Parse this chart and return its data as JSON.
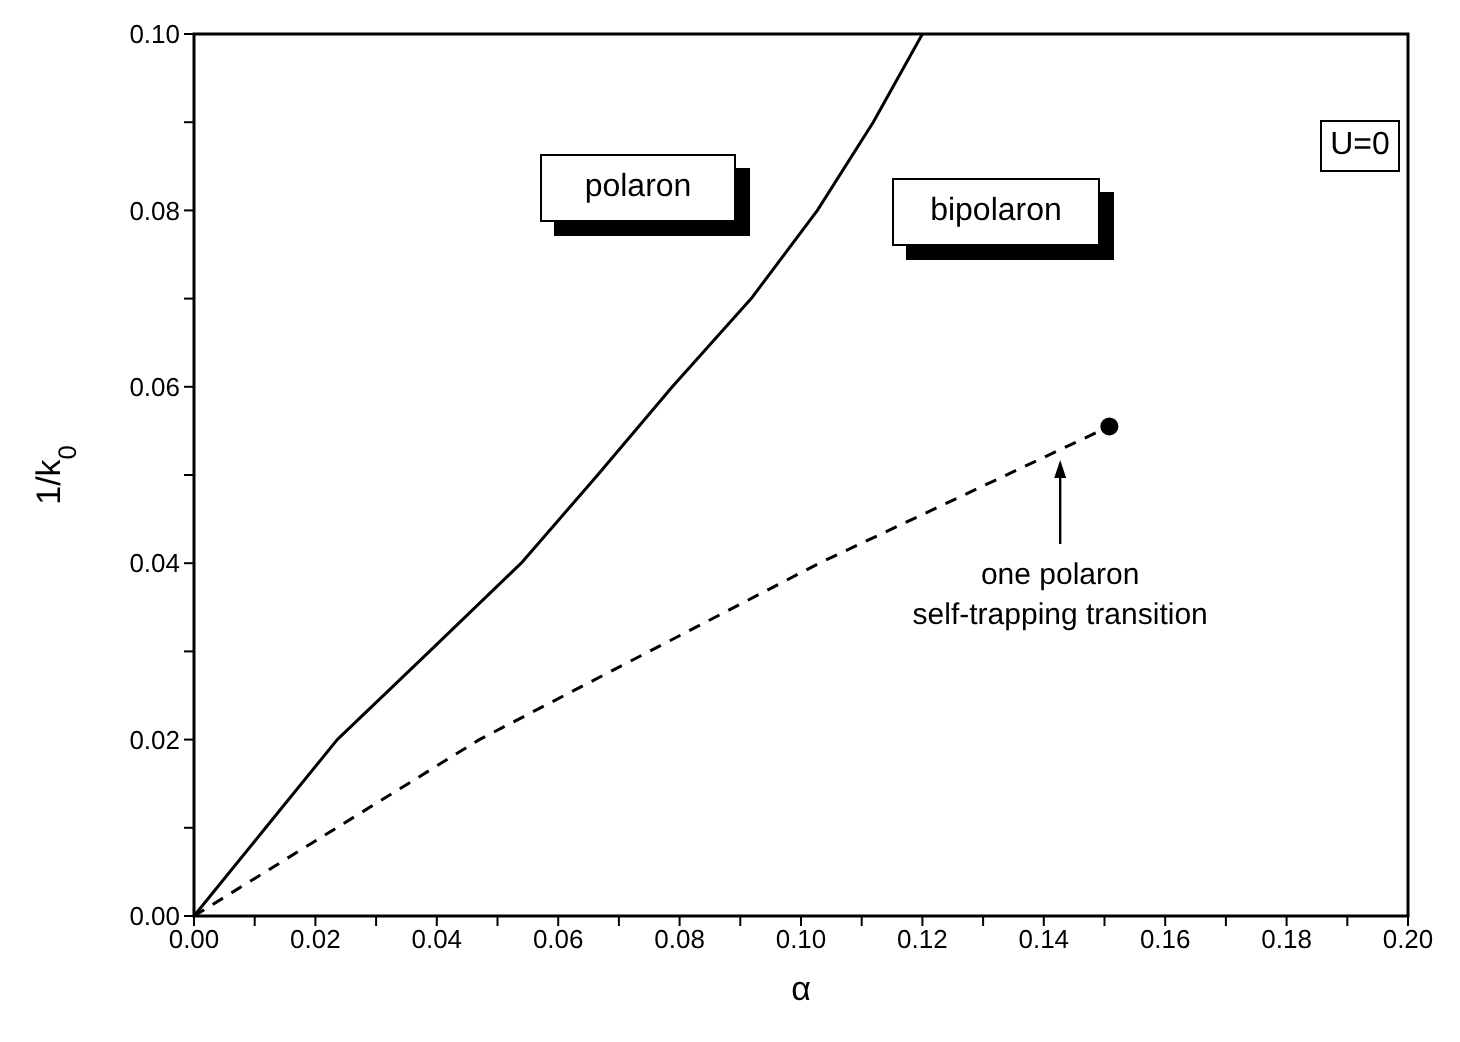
{
  "chart_data": {
    "type": "line",
    "xlabel": "α",
    "ylabel": "1/k$_{0}$",
    "xlim": [
      0,
      0.2
    ],
    "ylim": [
      0,
      0.1
    ],
    "xticks": [
      {
        "value": 0,
        "label": "0.00"
      },
      {
        "value": 0.01,
        "label": null
      },
      {
        "value": 0.02,
        "label": "0.02"
      },
      {
        "value": 0.03,
        "label": null
      },
      {
        "value": 0.04,
        "label": "0.04"
      },
      {
        "value": 0.05,
        "label": null
      },
      {
        "value": 0.06,
        "label": "0.06"
      },
      {
        "value": 0.07,
        "label": null
      },
      {
        "value": 0.08,
        "label": "0.08"
      },
      {
        "value": 0.09,
        "label": null
      },
      {
        "value": 0.1,
        "label": "0.10"
      },
      {
        "value": 0.11,
        "label": null
      },
      {
        "value": 0.12,
        "label": "0.12"
      },
      {
        "value": 0.13,
        "label": null
      },
      {
        "value": 0.14,
        "label": "0.14"
      },
      {
        "value": 0.15,
        "label": null
      },
      {
        "value": 0.16,
        "label": "0.16"
      },
      {
        "value": 0.17,
        "label": null
      },
      {
        "value": 0.18,
        "label": "0.18"
      },
      {
        "value": 0.19,
        "label": null
      },
      {
        "value": 0.2,
        "label": "0.20"
      }
    ],
    "yticks": [
      {
        "value": 0,
        "label": "0.00"
      },
      {
        "value": 0.01,
        "label": null
      },
      {
        "value": 0.02,
        "label": "0.02"
      },
      {
        "value": 0.03,
        "label": null
      },
      {
        "value": 0.04,
        "label": "0.04"
      },
      {
        "value": 0.05,
        "label": null
      },
      {
        "value": 0.06,
        "label": "0.06"
      },
      {
        "value": 0.07,
        "label": null
      },
      {
        "value": 0.08,
        "label": "0.08"
      },
      {
        "value": 0.09,
        "label": null
      },
      {
        "value": 0.1,
        "label": "0.10"
      }
    ],
    "grid": false,
    "series": [
      {
        "color": "#000000",
        "line_style": "solid",
        "marker": "none",
        "x": [
          0,
          0.0118,
          0.0236,
          0.0388,
          0.0539,
          0.0665,
          0.0788,
          0.0918,
          0.1027,
          0.1119,
          0.12
        ],
        "values": [
          0,
          0.01,
          0.02,
          0.03,
          0.04,
          0.05,
          0.06,
          0.07,
          0.08,
          0.09,
          0.1
        ]
      },
      {
        "color": "#000000",
        "line_style": "dashed",
        "marker": "none",
        "x": [
          0,
          0.047,
          0.103,
          0.1508
        ],
        "values": [
          0,
          0.02,
          0.04,
          0.0555
        ]
      },
      {
        "type": "scatter",
        "color": "#000000",
        "marker": "circle",
        "x": [
          0.1508
        ],
        "values": [
          0.0555
        ]
      }
    ],
    "annotations": [
      "polaron",
      "bipolaron",
      "U=0",
      {
        "text": "one polaron\nself-trapping transition",
        "x": 0.1427,
        "y": 0.0517
      }
    ]
  }
}
